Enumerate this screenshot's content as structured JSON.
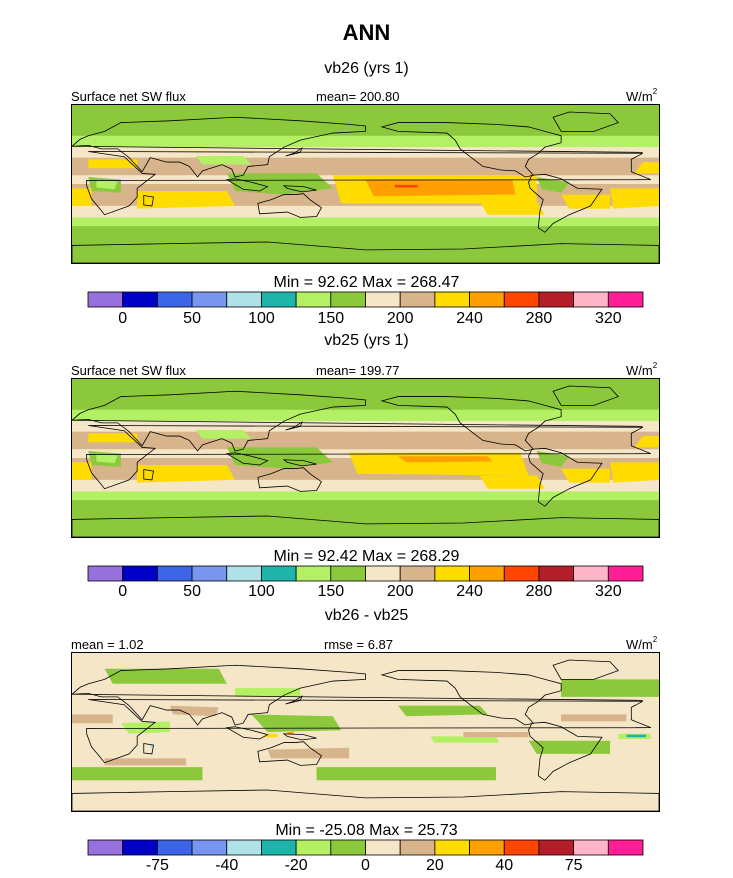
{
  "title": "ANN",
  "colors": {
    "palette": [
      "#9670dc",
      "#0000c8",
      "#3c64e6",
      "#7896ef",
      "#afe1e6",
      "#1eb4aa",
      "#b4f064",
      "#8cc83c",
      "#f5e6c8",
      "#d7b48c",
      "#ffdc00",
      "#ffa000",
      "#ff4600",
      "#b41e28",
      "#ffb4c8",
      "#ff1e96"
    ],
    "land_outline": "#000000"
  },
  "panels": [
    {
      "id": "vb26",
      "title": "vb26 (yrs 1)",
      "left_label": "Surface net SW flux",
      "center_label": "mean= 200.80",
      "units": "W/m",
      "units_sup": "2",
      "minmax": "Min =  92.62 Max = 268.47",
      "ticks": [
        "0",
        "50",
        "100",
        "150",
        "200",
        "240",
        "280",
        "320"
      ]
    },
    {
      "id": "vb25",
      "title": "vb25 (yrs 1)",
      "left_label": "Surface net SW flux",
      "center_label": "mean= 199.77",
      "units": "W/m",
      "units_sup": "2",
      "minmax": "Min =  92.42 Max = 268.29",
      "ticks": [
        "0",
        "50",
        "100",
        "150",
        "200",
        "240",
        "280",
        "320"
      ]
    },
    {
      "id": "diff",
      "title": "vb26 - vb25",
      "left_label": "mean =   1.02",
      "center_label": "rmse =   6.87",
      "units": "W/m",
      "units_sup": "2",
      "minmax": "Min = -25.08 Max =  25.73",
      "ticks": [
        "-75",
        "-40",
        "-20",
        "0",
        "20",
        "40",
        "75"
      ]
    }
  ],
  "chart_data": [
    {
      "type": "heatmap",
      "title": "vb26 (yrs 1)",
      "variable": "Surface net SW flux",
      "units": "W/m2",
      "mean": 200.8,
      "min": 92.62,
      "max": 268.47,
      "colorbar_levels": [
        0,
        25,
        50,
        75,
        100,
        125,
        150,
        175,
        200,
        220,
        240,
        260,
        280,
        300,
        320
      ],
      "colorbar_tick_labels": [
        "0",
        "50",
        "100",
        "150",
        "200",
        "240",
        "280",
        "320"
      ]
    },
    {
      "type": "heatmap",
      "title": "vb25 (yrs 1)",
      "variable": "Surface net SW flux",
      "units": "W/m2",
      "mean": 199.77,
      "min": 92.42,
      "max": 268.29,
      "colorbar_levels": [
        0,
        25,
        50,
        75,
        100,
        125,
        150,
        175,
        200,
        220,
        240,
        260,
        280,
        300,
        320
      ],
      "colorbar_tick_labels": [
        "0",
        "50",
        "100",
        "150",
        "200",
        "240",
        "280",
        "320"
      ]
    },
    {
      "type": "heatmap",
      "title": "vb26 - vb25",
      "units": "W/m2",
      "mean": 1.02,
      "rmse": 6.87,
      "min": -25.08,
      "max": 25.73,
      "colorbar_levels": [
        -100,
        -75,
        -50,
        -40,
        -30,
        -20,
        -10,
        0,
        10,
        20,
        30,
        40,
        50,
        75,
        100
      ],
      "colorbar_tick_labels": [
        "-75",
        "-40",
        "-20",
        "0",
        "20",
        "40",
        "75"
      ]
    }
  ]
}
